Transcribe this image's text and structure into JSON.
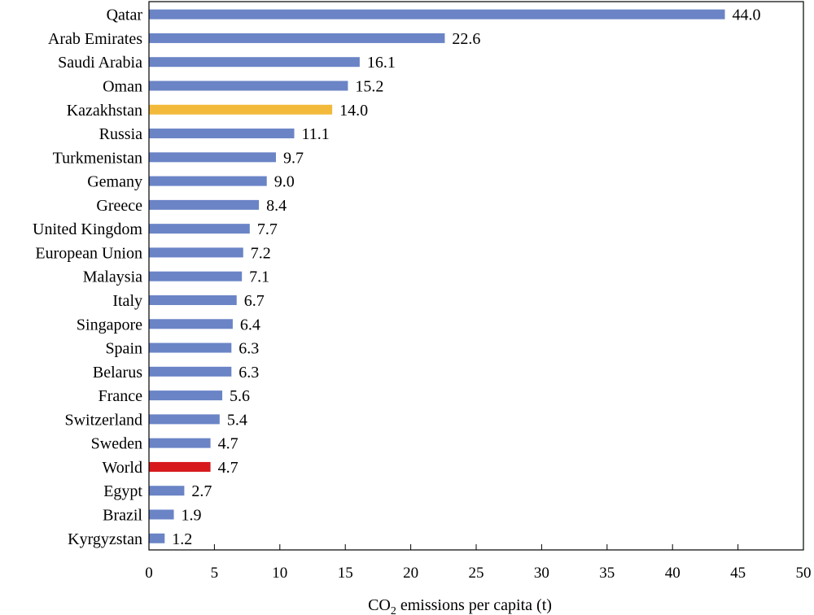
{
  "chart_data": {
    "type": "bar",
    "orientation": "horizontal",
    "categories": [
      "Qatar",
      "Arab Emirates",
      "Saudi Arabia",
      "Oman",
      "Kazakhstan",
      "Russia",
      "Turkmenistan",
      "Gemany",
      "Greece",
      "United Kingdom",
      "European Union",
      "Malaysia",
      "Italy",
      "Singapore",
      "Spain",
      "Belarus",
      "France",
      "Switzerland",
      "Sweden",
      "World",
      "Egypt",
      "Brazil",
      "Kyrgyzstan"
    ],
    "values": [
      44.0,
      22.6,
      16.1,
      15.2,
      14.0,
      11.1,
      9.7,
      9.0,
      8.4,
      7.7,
      7.2,
      7.1,
      6.7,
      6.4,
      6.3,
      6.3,
      5.6,
      5.4,
      4.7,
      4.7,
      2.7,
      1.9,
      1.2
    ],
    "value_labels": [
      "44.0",
      "22.6",
      "16.1",
      "15.2",
      "14.0",
      "11.1",
      "9.7",
      "9.0",
      "8.4",
      "7.7",
      "7.2",
      "7.1",
      "6.7",
      "6.4",
      "6.3",
      "6.3",
      "5.6",
      "5.4",
      "4.7",
      "4.7",
      "2.7",
      "1.9",
      "1.2"
    ],
    "bar_colors": [
      "#6a84c6",
      "#6a84c6",
      "#6a84c6",
      "#6a84c6",
      "#f2b93b",
      "#6a84c6",
      "#6a84c6",
      "#6a84c6",
      "#6a84c6",
      "#6a84c6",
      "#6a84c6",
      "#6a84c6",
      "#6a84c6",
      "#6a84c6",
      "#6a84c6",
      "#6a84c6",
      "#6a84c6",
      "#6a84c6",
      "#6a84c6",
      "#d7191c",
      "#6a84c6",
      "#6a84c6",
      "#6a84c6"
    ],
    "xlabel_main": "CO",
    "xlabel_sub": "2",
    "xlabel_rest": " emissions per capita (t)",
    "xlim": [
      0,
      50
    ],
    "xticks": [
      "0",
      "5",
      "10",
      "15",
      "20",
      "25",
      "30",
      "35",
      "40",
      "45",
      "50"
    ],
    "grid": false,
    "legend": "none"
  }
}
